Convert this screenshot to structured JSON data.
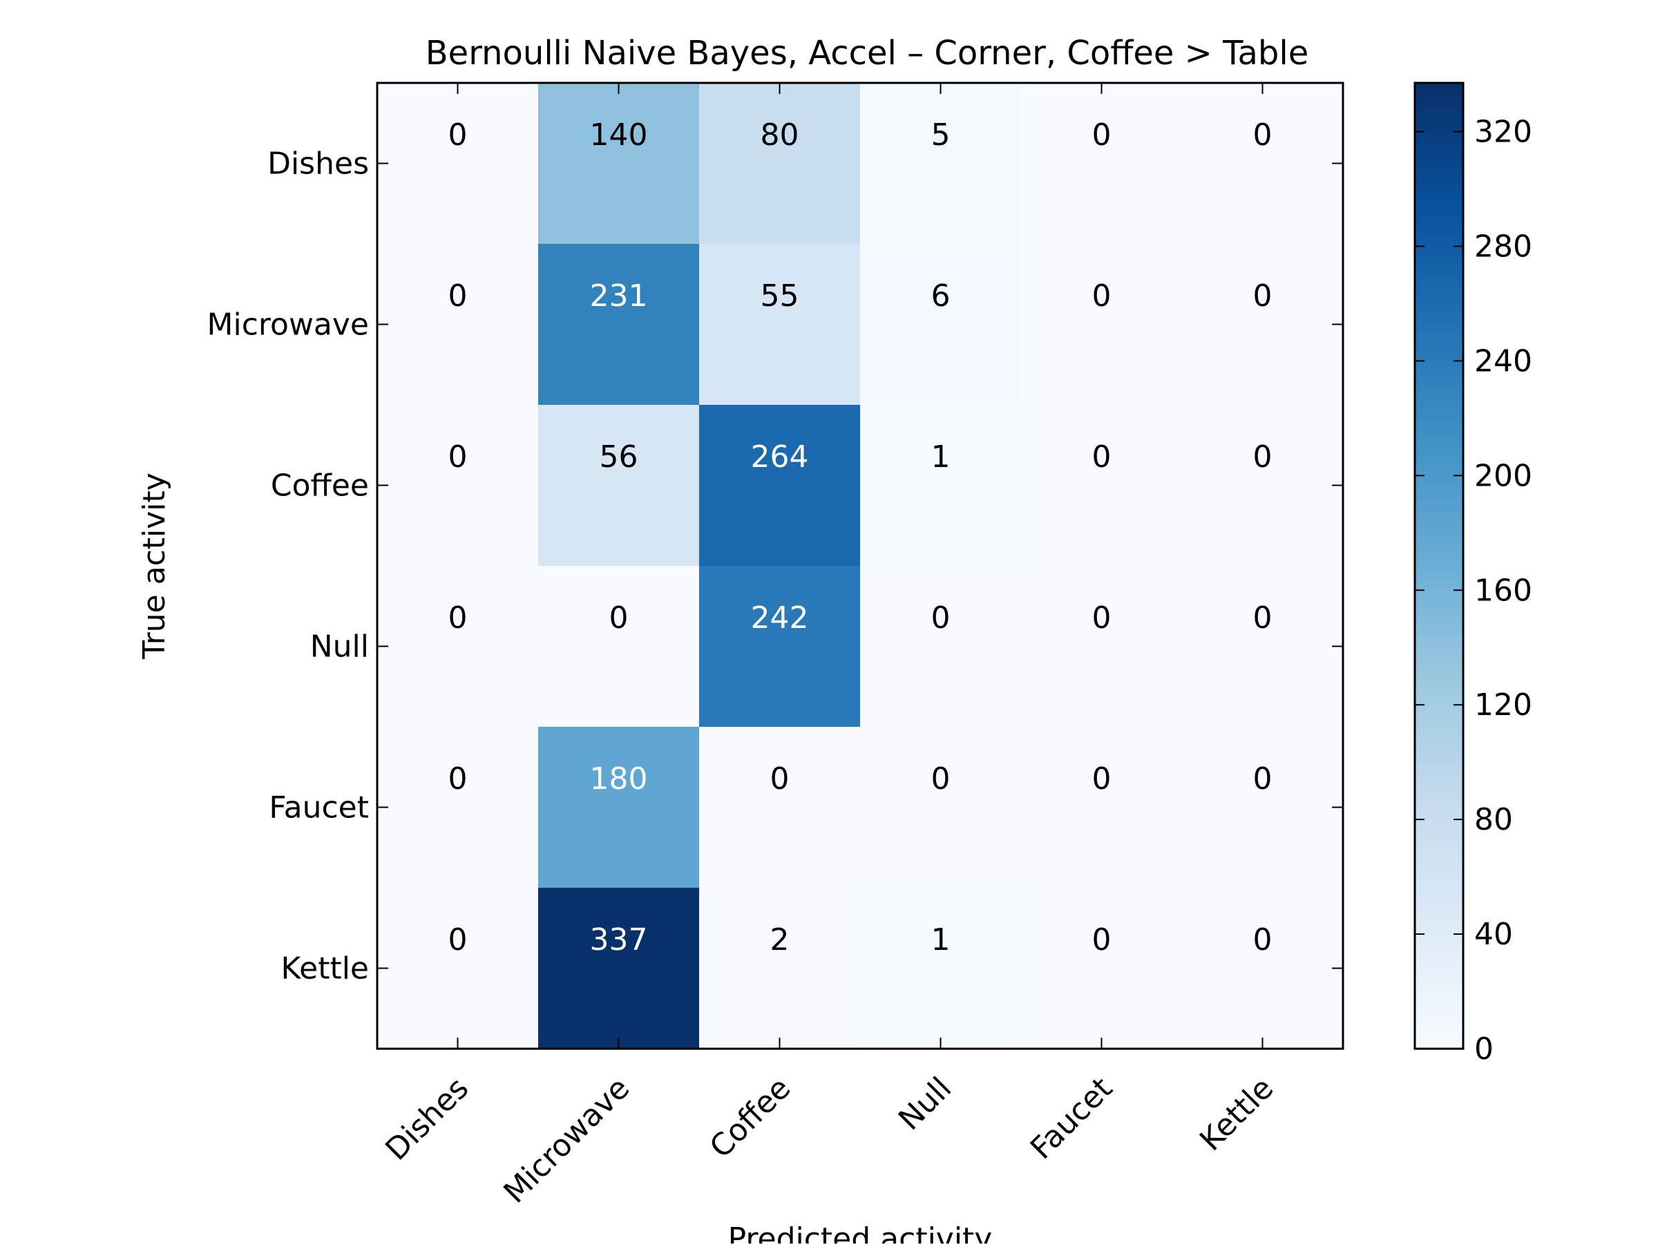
{
  "chart_data": {
    "type": "heatmap",
    "title": "Bernoulli Naive Bayes, Accel – Corner, Coffee > Table",
    "xlabel": "Predicted activity",
    "ylabel": "True activity",
    "x_categories": [
      "Dishes",
      "Microwave",
      "Coffee",
      "Null",
      "Faucet",
      "Kettle"
    ],
    "y_categories": [
      "Dishes",
      "Microwave",
      "Coffee",
      "Null",
      "Faucet",
      "Kettle"
    ],
    "values": [
      [
        0,
        140,
        80,
        5,
        0,
        0
      ],
      [
        0,
        231,
        55,
        6,
        0,
        0
      ],
      [
        0,
        56,
        264,
        1,
        0,
        0
      ],
      [
        0,
        0,
        242,
        0,
        0,
        0
      ],
      [
        0,
        180,
        0,
        0,
        0,
        0
      ],
      [
        0,
        337,
        2,
        1,
        0,
        0
      ]
    ],
    "colormap": "Blues",
    "colorbar": {
      "range": [
        0,
        337
      ],
      "ticks": [
        0,
        40,
        80,
        120,
        160,
        200,
        240,
        280,
        320
      ]
    },
    "grid": false,
    "legend": "colorbar-right"
  }
}
